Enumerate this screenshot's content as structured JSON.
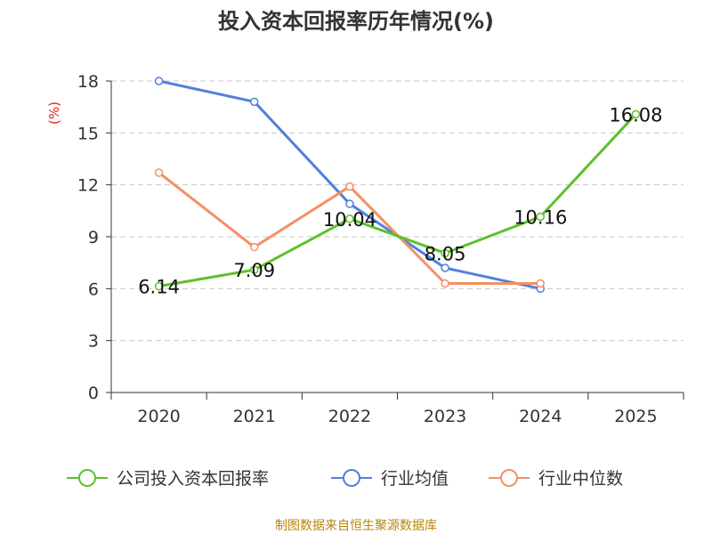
{
  "chart_data": {
    "type": "line",
    "title": "投入资本回报率历年情况(%)",
    "ylabel": "(%)",
    "ylim": [
      0,
      18
    ],
    "yticks": [
      "0",
      "3",
      "6",
      "9",
      "12",
      "15",
      "18"
    ],
    "categories": [
      "2020",
      "2021",
      "2022",
      "2023",
      "2024",
      "2025"
    ],
    "series": [
      {
        "name": "公司投入资本回报率",
        "color": "#5ec12b",
        "values": [
          6.14,
          7.09,
          10.04,
          8.05,
          10.16,
          16.08
        ],
        "labels": [
          "6.14",
          "7.09",
          "10.04",
          "8.05",
          "10.16",
          "16.08"
        ]
      },
      {
        "name": "行业均值",
        "color": "#4f81dd",
        "values": [
          18.0,
          16.8,
          10.9,
          7.2,
          6.0,
          null
        ]
      },
      {
        "name": "行业中位数",
        "color": "#f39063",
        "values": [
          12.7,
          8.4,
          11.9,
          6.3,
          6.3,
          null
        ]
      }
    ],
    "grid": true,
    "legend": "bottom"
  },
  "source": "制图数据来自恒生聚源数据库"
}
